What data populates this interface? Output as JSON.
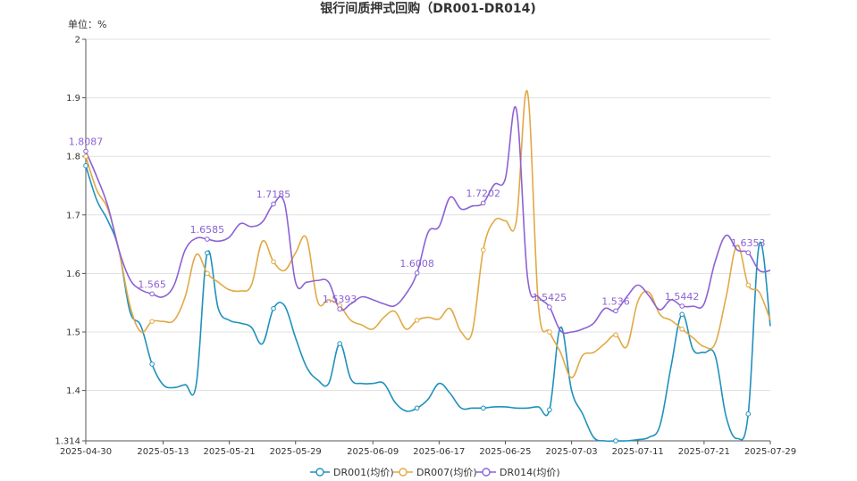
{
  "chart_data": {
    "type": "line",
    "title": "银行间质押式回购（DR001-DR014)",
    "unit_label": "单位：%",
    "ylim": [
      1.314,
      2.0
    ],
    "yticks": [
      1.314,
      1.4,
      1.5,
      1.6,
      1.7,
      1.8,
      1.9,
      2
    ],
    "ytick_labels": [
      "1.314",
      "1.4",
      "1.5",
      "1.6",
      "1.7",
      "1.8",
      "1.9",
      "2"
    ],
    "xtick_labels": [
      "2025-04-30",
      "2025-05-13",
      "2025-05-21",
      "2025-05-29",
      "2025-06-09",
      "2025-06-17",
      "2025-06-25",
      "2025-07-03",
      "2025-07-11",
      "2025-07-21",
      "2025-07-29"
    ],
    "xtick_index": [
      0,
      7,
      13,
      19,
      26,
      32,
      38,
      44,
      50,
      56,
      62
    ],
    "n_points": 63,
    "grid": true,
    "legend_position": "bottom",
    "series": [
      {
        "name": "DR001(均价)",
        "color": "#1f91bd",
        "values": [
          1.784,
          1.725,
          1.69,
          1.64,
          1.535,
          1.51,
          1.445,
          1.41,
          1.405,
          1.41,
          1.41,
          1.635,
          1.54,
          1.52,
          1.515,
          1.508,
          1.48,
          1.54,
          1.545,
          1.49,
          1.44,
          1.418,
          1.412,
          1.48,
          1.42,
          1.412,
          1.412,
          1.412,
          1.38,
          1.365,
          1.37,
          1.385,
          1.412,
          1.395,
          1.37,
          1.37,
          1.37,
          1.372,
          1.372,
          1.37,
          1.37,
          1.372,
          1.367,
          1.508,
          1.4,
          1.36,
          1.32,
          1.314,
          1.314,
          1.314,
          1.316,
          1.32,
          1.34,
          1.44,
          1.53,
          1.47,
          1.465,
          1.46,
          1.355,
          1.318,
          1.36,
          1.65,
          1.51
        ]
      },
      {
        "name": "DR007(均价)",
        "color": "#e1a944",
        "values": [
          1.8,
          1.742,
          1.71,
          1.64,
          1.545,
          1.5,
          1.518,
          1.518,
          1.52,
          1.56,
          1.632,
          1.6,
          1.585,
          1.572,
          1.57,
          1.58,
          1.655,
          1.62,
          1.605,
          1.635,
          1.66,
          1.552,
          1.555,
          1.545,
          1.52,
          1.512,
          1.505,
          1.525,
          1.535,
          1.505,
          1.52,
          1.525,
          1.522,
          1.54,
          1.5,
          1.5,
          1.64,
          1.69,
          1.69,
          1.69,
          1.91,
          1.545,
          1.5,
          1.465,
          1.422,
          1.46,
          1.465,
          1.48,
          1.495,
          1.475,
          1.552,
          1.568,
          1.53,
          1.52,
          1.505,
          1.49,
          1.475,
          1.48,
          1.56,
          1.648,
          1.58,
          1.568,
          1.52
        ]
      },
      {
        "name": "DR014(均价)",
        "color": "#8c62d4",
        "values": [
          1.8087,
          1.765,
          1.715,
          1.64,
          1.59,
          1.572,
          1.565,
          1.56,
          1.58,
          1.64,
          1.66,
          1.6585,
          1.655,
          1.662,
          1.685,
          1.68,
          1.688,
          1.7185,
          1.72,
          1.585,
          1.585,
          1.588,
          1.585,
          1.5393,
          1.548,
          1.56,
          1.555,
          1.548,
          1.545,
          1.565,
          1.6008,
          1.67,
          1.68,
          1.73,
          1.71,
          1.715,
          1.7202,
          1.752,
          1.762,
          1.88,
          1.595,
          1.56,
          1.5425,
          1.502,
          1.5,
          1.505,
          1.515,
          1.54,
          1.536,
          1.56,
          1.58,
          1.562,
          1.538,
          1.555,
          1.5442,
          1.544,
          1.548,
          1.62,
          1.665,
          1.64,
          1.6353,
          1.605,
          1.605
        ]
      }
    ],
    "annotations": [
      {
        "series": 2,
        "index": 0,
        "label": "1.8087"
      },
      {
        "series": 2,
        "index": 6,
        "label": "1.565"
      },
      {
        "series": 2,
        "index": 11,
        "label": "1.6585"
      },
      {
        "series": 2,
        "index": 17,
        "label": "1.7185"
      },
      {
        "series": 2,
        "index": 23,
        "label": "1.5393"
      },
      {
        "series": 2,
        "index": 30,
        "label": "1.6008"
      },
      {
        "series": 2,
        "index": 36,
        "label": "1.7202"
      },
      {
        "series": 2,
        "index": 42,
        "label": "1.5425"
      },
      {
        "series": 2,
        "index": 48,
        "label": "1.536"
      },
      {
        "series": 2,
        "index": 54,
        "label": "1.5442"
      },
      {
        "series": 2,
        "index": 60,
        "label": "1.6353"
      }
    ],
    "marker_indices": [
      0,
      6,
      11,
      17,
      23,
      30,
      36,
      42,
      48,
      54,
      60
    ]
  }
}
